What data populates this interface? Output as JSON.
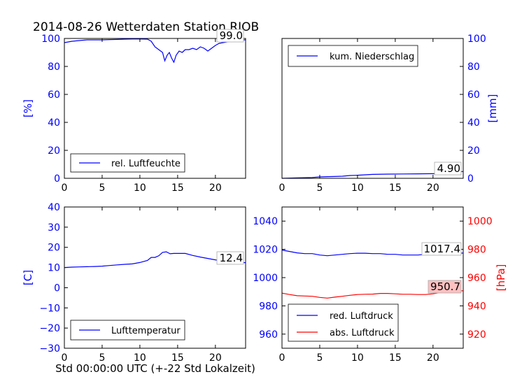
{
  "figure": {
    "title": "2014-08-26 Wetterdaten Station RJOB",
    "xlabel": "Std 00:00:00 UTC (+-22 Std Lokalzeit)"
  },
  "colors": {
    "blue": "#0000ff",
    "red": "#ff0000",
    "black": "#000000",
    "label_box_red": "#ffc0c0"
  },
  "chart_data": [
    {
      "id": "humidity",
      "type": "line",
      "xlim": [
        0,
        24
      ],
      "xticks": [
        "0",
        "5",
        "10",
        "15",
        "20"
      ],
      "ylim": [
        0,
        100
      ],
      "yticks": [
        "0",
        "20",
        "40",
        "60",
        "80",
        "100"
      ],
      "ylabel": "[%]",
      "legend": "rel. Luftfeuchte",
      "last_value_label": "99.0",
      "series": [
        {
          "name": "rel. Luftfeuchte",
          "color": "#0000ff",
          "x": [
            0,
            1,
            2,
            3,
            4,
            5,
            6,
            7,
            8,
            9,
            10,
            11,
            11.5,
            12,
            12.5,
            13,
            13.3,
            13.6,
            13.9,
            14.2,
            14.5,
            14.8,
            15.2,
            15.6,
            16,
            16.5,
            17,
            17.5,
            18,
            18.5,
            19,
            19.5,
            20,
            20.5,
            21,
            21.5,
            22,
            23,
            24
          ],
          "y": [
            97,
            98,
            98.5,
            99,
            99,
            99,
            99.2,
            99.3,
            99.5,
            99.6,
            99.6,
            99.5,
            98,
            94,
            92,
            90,
            84,
            88,
            90,
            86,
            83,
            88,
            91,
            90,
            92,
            92,
            93,
            92,
            94,
            93,
            91,
            93,
            95,
            96.5,
            97,
            97.5,
            98,
            99,
            99
          ]
        }
      ]
    },
    {
      "id": "precipitation",
      "type": "line",
      "xlim": [
        0,
        24
      ],
      "xticks": [
        "0",
        "5",
        "10",
        "15",
        "20"
      ],
      "ylim": [
        0,
        100
      ],
      "yticks": [
        "0",
        "20",
        "40",
        "60",
        "80",
        "100"
      ],
      "ylabel": "[mm]",
      "legend": "kum. Niederschlag",
      "last_value_label": "4.90",
      "series": [
        {
          "name": "kum. Niederschlag",
          "color": "#0000ff",
          "x": [
            0,
            2,
            4,
            5,
            6,
            7,
            8,
            9,
            10,
            11,
            12,
            14,
            16,
            18,
            20,
            22,
            23,
            24
          ],
          "y": [
            0,
            0.3,
            0.6,
            1.0,
            1.2,
            1.3,
            1.5,
            2.0,
            2.2,
            2.5,
            2.8,
            3.0,
            3.1,
            3.2,
            3.3,
            3.6,
            4.5,
            4.9
          ]
        }
      ]
    },
    {
      "id": "temperature",
      "type": "line",
      "xlim": [
        0,
        24
      ],
      "xticks": [
        "0",
        "5",
        "10",
        "15",
        "20"
      ],
      "ylim": [
        -30,
        40
      ],
      "yticks": [
        "−30",
        "−20",
        "−10",
        "0",
        "10",
        "20",
        "30",
        "40"
      ],
      "ylabel": "[C]",
      "legend": "Lufttemperatur",
      "last_value_label": "12.4",
      "series": [
        {
          "name": "Lufttemperatur",
          "color": "#0000ff",
          "x": [
            0,
            1,
            2,
            3,
            4,
            5,
            6,
            7,
            8,
            9,
            10,
            11,
            11.5,
            12,
            12.5,
            13,
            13.5,
            14,
            14.5,
            15,
            16,
            17,
            18,
            19,
            20,
            21,
            22,
            23,
            24
          ],
          "y": [
            10,
            10.2,
            10.3,
            10.4,
            10.5,
            10.7,
            11,
            11.3,
            11.6,
            11.8,
            12.5,
            13.5,
            15,
            15,
            15.8,
            17.5,
            17.8,
            16.8,
            17,
            17,
            17,
            16,
            15.2,
            14.5,
            13.8,
            13.2,
            13,
            12.6,
            12.4
          ]
        }
      ]
    },
    {
      "id": "pressure",
      "type": "line",
      "xlim": [
        0,
        24
      ],
      "xticks": [
        "0",
        "5",
        "10",
        "15",
        "20"
      ],
      "ylim_left": [
        950,
        1050
      ],
      "yticks_left": [
        "960",
        "980",
        "1000",
        "1020",
        "1040"
      ],
      "ylim_right": [
        910,
        1010
      ],
      "yticks_right": [
        "920",
        "940",
        "960",
        "980",
        "1000"
      ],
      "ylabel_right": "[hPa]",
      "legend": [
        "red. Luftdruck",
        "abs. Luftdruck"
      ],
      "last_value_labels": [
        "1017.4",
        "950.7"
      ],
      "series": [
        {
          "name": "red. Luftdruck",
          "color": "#0000ff",
          "axis": "left",
          "x": [
            0,
            1,
            2,
            3,
            4,
            5,
            6,
            7,
            8,
            9,
            10,
            11,
            12,
            13,
            14,
            15,
            16,
            17,
            18,
            19,
            20,
            21,
            22,
            23,
            24
          ],
          "y": [
            1019.5,
            1018.5,
            1017.5,
            1017,
            1017,
            1016,
            1015.5,
            1016,
            1016.5,
            1017,
            1017.3,
            1017.3,
            1017,
            1017,
            1016.5,
            1016.5,
            1016,
            1016,
            1016,
            1016.5,
            1016.8,
            1017,
            1017.2,
            1017.3,
            1017.4
          ]
        },
        {
          "name": "abs. Luftdruck",
          "color": "#ff0000",
          "axis": "right",
          "x": [
            0,
            1,
            2,
            3,
            4,
            5,
            6,
            7,
            8,
            9,
            10,
            11,
            12,
            13,
            14,
            15,
            16,
            17,
            18,
            19,
            20,
            21,
            22,
            23,
            24
          ],
          "y": [
            949,
            948,
            947.2,
            947,
            946.8,
            946,
            945.5,
            946.2,
            946.8,
            947.5,
            948,
            948.2,
            948.3,
            948.8,
            948.8,
            948.5,
            948.2,
            948.2,
            948,
            948,
            948.5,
            949.5,
            950,
            950.5,
            950.7
          ]
        }
      ]
    }
  ]
}
